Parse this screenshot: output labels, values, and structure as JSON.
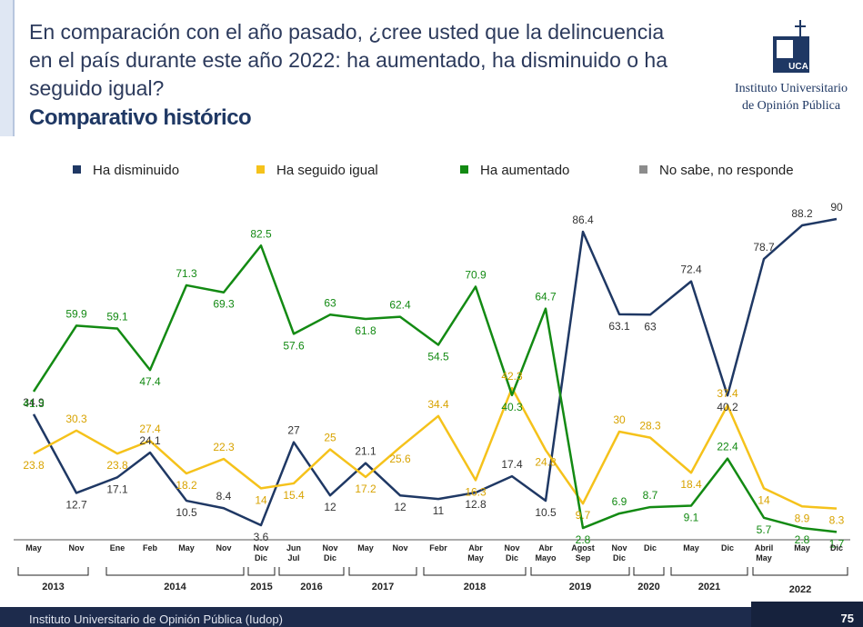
{
  "header": {
    "title": [
      "En comparación con el año pasado, ¿cree usted que la delincuencia",
      "en el país durante este año 2022: ha aumentado, ha disminuido o ha",
      "seguido igual?"
    ],
    "subtitle": "Comparativo histórico",
    "logo": [
      "Instituto Universitario",
      "de Opinión Pública"
    ]
  },
  "chart_data": {
    "type": "line",
    "categories": [
      "May",
      "Nov",
      "Ene",
      "Feb",
      "May",
      "Nov",
      "Nov\nDic",
      "Jun\nJul",
      "Nov\nDic",
      "May",
      "Nov",
      "Febr",
      "Abr\nMay",
      "Nov\nDic",
      "Abr\nMayo",
      "Agost\nSep",
      "Nov\nDic",
      "Dic",
      "May",
      "Dic",
      "Abril\nMay",
      "May",
      "Dic"
    ],
    "years": [
      "2013",
      "2014",
      "2015",
      "2016",
      "2017",
      "2018",
      "2019",
      "2020",
      "2021",
      "2022"
    ],
    "series": [
      {
        "name": "Ha disminuido",
        "color": "#1f3864",
        "values": [
          34.9,
          12.7,
          17.1,
          24.1,
          10.5,
          8.4,
          3.6,
          27,
          12,
          21.1,
          12,
          11,
          12.8,
          17.4,
          10.5,
          86.4,
          63.1,
          63,
          72.4,
          40.2,
          78.7,
          88.2,
          90
        ]
      },
      {
        "name": "Ha seguido igual",
        "color": "#f5c21b",
        "values": [
          23.8,
          30.3,
          23.8,
          27.4,
          18.2,
          22.3,
          14,
          15.4,
          25,
          17.2,
          25.6,
          34.4,
          16.3,
          42.3,
          24.8,
          9.7,
          30,
          28.3,
          18.4,
          37.4,
          14,
          8.9,
          8.3
        ]
      },
      {
        "name": "Ha aumentado",
        "color": "#138a13",
        "values": [
          41.3,
          59.9,
          59.1,
          47.4,
          71.3,
          69.3,
          82.5,
          57.6,
          63,
          61.8,
          62.4,
          54.5,
          70.9,
          40.3,
          64.7,
          2.8,
          6.9,
          8.7,
          9.1,
          22.4,
          5.7,
          2.8,
          1.7
        ]
      },
      {
        "name": "No sabe, no responde",
        "color": "#8c8c8c",
        "values": [
          null,
          null,
          null,
          null,
          null,
          null,
          null,
          null,
          null,
          null,
          null,
          null,
          null,
          null,
          null,
          null,
          null,
          null,
          null,
          null,
          null,
          null,
          null
        ]
      }
    ]
  },
  "footer": {
    "text": "Instituto Universitario de Opinión Pública (Iudop)",
    "page": "75"
  }
}
